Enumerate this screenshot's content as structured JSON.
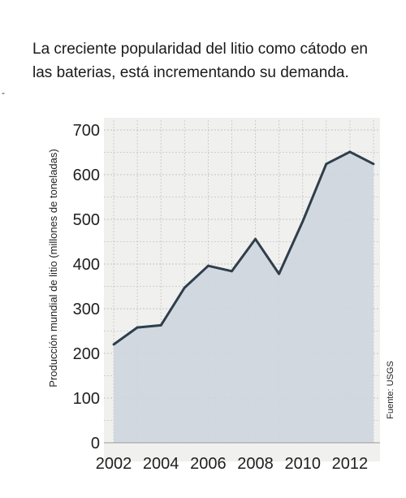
{
  "caption": {
    "line1": "La creciente popularidad del litio como cátodo en",
    "line2": "las baterias, está incrementando su demanda."
  },
  "margin_mark": "-",
  "chart_data": {
    "type": "area",
    "title": "",
    "xlabel": "",
    "ylabel": "Producción mundial de litio (millones de toneladas)",
    "source": "Fuente: USGS",
    "x": [
      2002,
      2003,
      2004,
      2005,
      2006,
      2007,
      2008,
      2009,
      2010,
      2011,
      2012,
      2013
    ],
    "series": [
      {
        "values": [
          220,
          258,
          263,
          347,
          396,
          384,
          456,
          378,
          495,
          624,
          651,
          624
        ]
      }
    ],
    "xticks": [
      "2002",
      "2004",
      "2006",
      "2008",
      "2010",
      "2012"
    ],
    "yticks": [
      "0",
      "100",
      "200",
      "300",
      "400",
      "500",
      "600",
      "700"
    ],
    "xlim": [
      2002,
      2013
    ],
    "ylim": [
      0,
      700
    ],
    "grid": true,
    "colors": {
      "fill": "#cfd6de",
      "line": "#2e3e4c",
      "grid": "#c3c3c3",
      "background": "#f0f0ee"
    }
  }
}
